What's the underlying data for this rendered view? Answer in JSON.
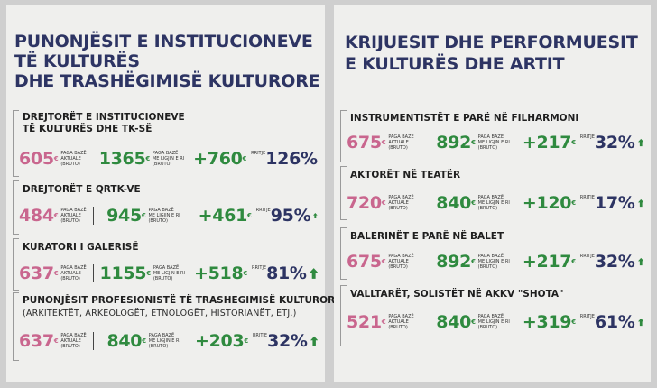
{
  "labels": {
    "current_lines": [
      "PAGA BAZË",
      "AKTUALE",
      "(BRUTO)"
    ],
    "new_lines": [
      "PAGA BAZË",
      "ME LIGJIN E RI",
      "(BRUTO)"
    ],
    "increase": "RRITJE",
    "currency": "€"
  },
  "colors": {
    "current": "#c9668e",
    "new": "#2f8a3f",
    "percent": "#2d3463",
    "arrow": "#2f8a3f",
    "title": "#2d3463"
  },
  "left": {
    "title_lines": [
      "PUNONJËSIT E INSTITUCIONEVE",
      "TË KULTURËS",
      "DHE TRASHËGIMISË KULTURORE"
    ],
    "items": [
      {
        "title_lines": [
          "DREJTORËT E INSTITUCIONEVE",
          "TË KULTURËS DHE TK-SË"
        ],
        "subtitle": "",
        "current": "605",
        "new": "1365",
        "increase": "+760",
        "percent": "126%"
      },
      {
        "title_lines": [
          "DREJTORËT E QRTK-VE"
        ],
        "subtitle": "",
        "current": "484",
        "new": "945",
        "increase": "+461",
        "percent": "95%"
      },
      {
        "title_lines": [
          "KURATORI I GALERISË"
        ],
        "subtitle": "",
        "current": "637",
        "new": "1155",
        "increase": "+518",
        "percent": "81%"
      },
      {
        "title_lines": [
          "PUNONJËSIT PROFESIONISTË TË TRASHEGIMISË KULTURORE"
        ],
        "subtitle": "(ARKITEKTËT, ARKEOLOGËT, ETNOLOGËT, HISTORIANËT, ETJ.)",
        "current": "637",
        "new": "840",
        "increase": "+203",
        "percent": "32%"
      }
    ]
  },
  "right": {
    "title_lines": [
      "KRIJUESIT DHE PERFORMUESIT",
      "E KULTURËS DHE ARTIT"
    ],
    "items": [
      {
        "title_lines": [
          "INSTRUMENTISTËT E PARË NË FILHARMONI"
        ],
        "subtitle": "",
        "current": "675",
        "new": "892",
        "increase": "+217",
        "percent": "32%"
      },
      {
        "title_lines": [
          "AKTORËT NË TEATËR"
        ],
        "subtitle": "",
        "current": "720",
        "new": "840",
        "increase": "+120",
        "percent": "17%"
      },
      {
        "title_lines": [
          "BALERINËT E PARË NË BALET"
        ],
        "subtitle": "",
        "current": "675",
        "new": "892",
        "increase": "+217",
        "percent": "32%"
      },
      {
        "title_lines": [
          "VALLTARËT, SOLISTËT NË AKKV \"SHOTA\""
        ],
        "subtitle": "",
        "current": "521",
        "new": "840",
        "increase": "+319",
        "percent": "61%"
      }
    ]
  }
}
